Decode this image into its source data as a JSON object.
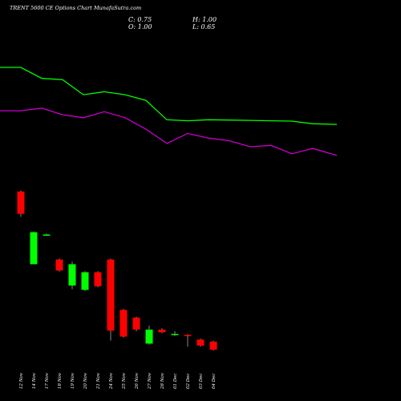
{
  "title": "TRENT 5600  CE Options  Chart MunafaSutra.com",
  "ohlc": {
    "close_label": "C: 0.75",
    "high_label": "H: 1.00",
    "open_label": "O: 1.00",
    "low_label": "L: 0.65"
  },
  "colors": {
    "background": "#000000",
    "up": "#00ff00",
    "down": "#ff0000",
    "line_green": "#00ff00",
    "line_magenta": "#cc00cc",
    "text": "#ffffff"
  },
  "chart_data": {
    "type": "candlestick",
    "price_range": [
      0,
      100
    ],
    "categories": [
      "12 Nov",
      "14 Nov",
      "17 Nov",
      "18 Nov",
      "19 Nov",
      "20 Nov",
      "21 Nov",
      "24 Nov",
      "25 Nov",
      "26 Nov",
      "27 Nov",
      "28 Nov",
      "01 Dec",
      "02 Dec",
      "03 Dec",
      "04 Dec"
    ],
    "candles": [
      {
        "date": "12 Nov",
        "open": 62.8,
        "high": 63.1,
        "low": 55.2,
        "close": 56.1
      },
      {
        "date": "14 Nov",
        "open": 41.0,
        "high": 50.8,
        "low": 41.0,
        "close": 50.6
      },
      {
        "date": "17 Nov",
        "open": 49.9,
        "high": 50.2,
        "low": 49.6,
        "close": 49.9
      },
      {
        "date": "18 Nov",
        "open": 42.4,
        "high": 42.7,
        "low": 38.8,
        "close": 39.1
      },
      {
        "date": "19 Nov",
        "open": 34.6,
        "high": 41.8,
        "low": 33.5,
        "close": 41.0
      },
      {
        "date": "20 Nov",
        "open": 33.3,
        "high": 38.9,
        "low": 33.0,
        "close": 38.6
      },
      {
        "date": "21 Nov",
        "open": 38.6,
        "high": 38.9,
        "low": 34.1,
        "close": 34.4
      },
      {
        "date": "24 Nov",
        "open": 42.4,
        "high": 42.7,
        "low": 18.1,
        "close": 21.1
      },
      {
        "date": "25 Nov",
        "open": 27.3,
        "high": 27.6,
        "low": 19.0,
        "close": 19.3
      },
      {
        "date": "26 Nov",
        "open": 25.0,
        "high": 25.3,
        "low": 20.9,
        "close": 21.4
      },
      {
        "date": "27 Nov",
        "open": 17.2,
        "high": 22.6,
        "low": 16.9,
        "close": 21.4
      },
      {
        "date": "28 Nov",
        "open": 21.4,
        "high": 21.8,
        "low": 20.3,
        "close": 20.6
      },
      {
        "date": "01 Dec",
        "open": 19.8,
        "high": 20.9,
        "low": 19.5,
        "close": 20.1
      },
      {
        "date": "02 Dec",
        "open": 19.8,
        "high": 20.1,
        "low": 16.3,
        "close": 19.5
      },
      {
        "date": "03 Dec",
        "open": 18.4,
        "high": 18.7,
        "low": 16.3,
        "close": 16.6
      },
      {
        "date": "04 Dec",
        "open": 17.8,
        "high": 18.1,
        "low": 15.1,
        "close": 15.4
      }
    ],
    "series": [
      {
        "color": "green",
        "x": [
          0,
          26,
          52,
          78,
          104,
          130,
          156,
          182,
          208,
          234,
          260,
          286,
          312,
          338,
          364,
          390,
          420
        ],
        "values": [
          100.0,
          100.0,
          96.7,
          96.3,
          91.8,
          92.7,
          91.8,
          90.1,
          84.3,
          84.0,
          84.3,
          84.2,
          84.1,
          84.0,
          83.9,
          83.1,
          82.9
        ]
      },
      {
        "color": "magenta",
        "x": [
          0,
          26,
          52,
          78,
          104,
          130,
          156,
          182,
          208,
          234,
          260,
          286,
          312,
          338,
          364,
          390,
          420
        ],
        "values": [
          87.0,
          87.0,
          87.8,
          85.8,
          84.9,
          86.7,
          84.9,
          81.5,
          77.2,
          80.2,
          78.8,
          78.0,
          76.2,
          76.6,
          74.1,
          75.7,
          73.6
        ]
      }
    ]
  }
}
